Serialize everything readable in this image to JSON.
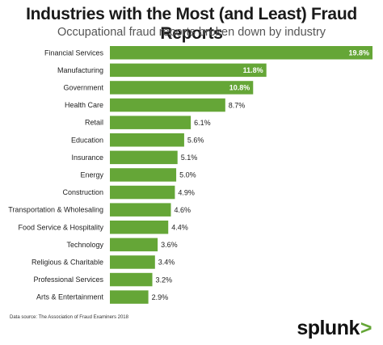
{
  "header": {
    "title": "Industries with the Most (and Least) Fraud Reports",
    "subtitle": "Occupational fraud reports broken down by industry"
  },
  "footer": {
    "source": "Data source: The Association of Fraud Examiners 2018",
    "logo_text": "splunk",
    "logo_mark": ">"
  },
  "colors": {
    "bar": "#65a637"
  },
  "chart_data": {
    "type": "bar",
    "orientation": "horizontal",
    "title": "Industries with the Most (and Least) Fraud Reports",
    "subtitle": "Occupational fraud reports broken down by industry",
    "categories": [
      "Financial Services",
      "Manufacturing",
      "Government",
      "Health Care",
      "Retail",
      "Education",
      "Insurance",
      "Energy",
      "Construction",
      "Transportation & Wholesaling",
      "Food Service & Hospitality",
      "Technology",
      "Religious & Charitable",
      "Professional Services",
      "Arts & Entertainment"
    ],
    "values": [
      19.8,
      11.8,
      10.8,
      8.7,
      6.1,
      5.6,
      5.1,
      5.0,
      4.9,
      4.6,
      4.4,
      3.6,
      3.4,
      3.2,
      2.9
    ],
    "value_labels": [
      "19.8%",
      "11.8%",
      "10.8%",
      "8.7%",
      "6.1%",
      "5.6%",
      "5.1%",
      "5.0%",
      "4.9%",
      "4.6%",
      "4.4%",
      "3.6%",
      "3.4%",
      "3.2%",
      "2.9%"
    ],
    "unit": "%",
    "grid": false,
    "legend": "none"
  }
}
